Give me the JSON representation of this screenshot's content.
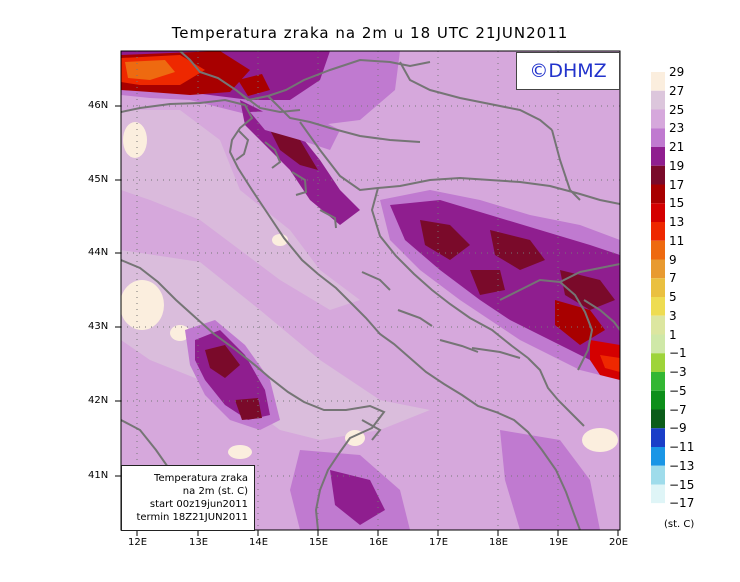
{
  "title": "Temperatura zraka na 2m u 18 UTC 21JUN2011",
  "logo": "©DHMZ",
  "info_box": [
    "Temperatura zraka",
    "na 2m (st. C)",
    "start 00z19jun2011",
    "termin 18Z21JUN2011"
  ],
  "lat_labels": [
    "46N",
    "45N",
    "44N",
    "43N",
    "42N",
    "41N"
  ],
  "lon_labels": [
    "12E",
    "13E",
    "14E",
    "15E",
    "16E",
    "17E",
    "18E",
    "19E",
    "20E"
  ],
  "legend": {
    "labels": [
      "29",
      "27",
      "25",
      "23",
      "21",
      "19",
      "17",
      "15",
      "13",
      "11",
      "9",
      "7",
      "5",
      "3",
      "1",
      "−1",
      "−3",
      "−5",
      "−7",
      "−9",
      "−11",
      "−13",
      "−15",
      "−17"
    ],
    "colors": [
      "#fbeede",
      "#dcc6dc",
      "#d6a8dc",
      "#c07ad0",
      "#8f1e8f",
      "#7a0a2a",
      "#a80000",
      "#d40000",
      "#ee2800",
      "#ee6a10",
      "#e89a30",
      "#eac040",
      "#eedc52",
      "#dce6a0",
      "#cfe8a8",
      "#9ed43a",
      "#33b733",
      "#0d8f1a",
      "#0b5c1a",
      "#1a3ec8",
      "#1a96e6",
      "#9fdceb",
      "#dff5f7",
      "#ffffff"
    ],
    "units": "(st. C)"
  },
  "colors": {
    "land_base": "#d6a8dc",
    "border": "#757575",
    "outline": "#000000"
  }
}
